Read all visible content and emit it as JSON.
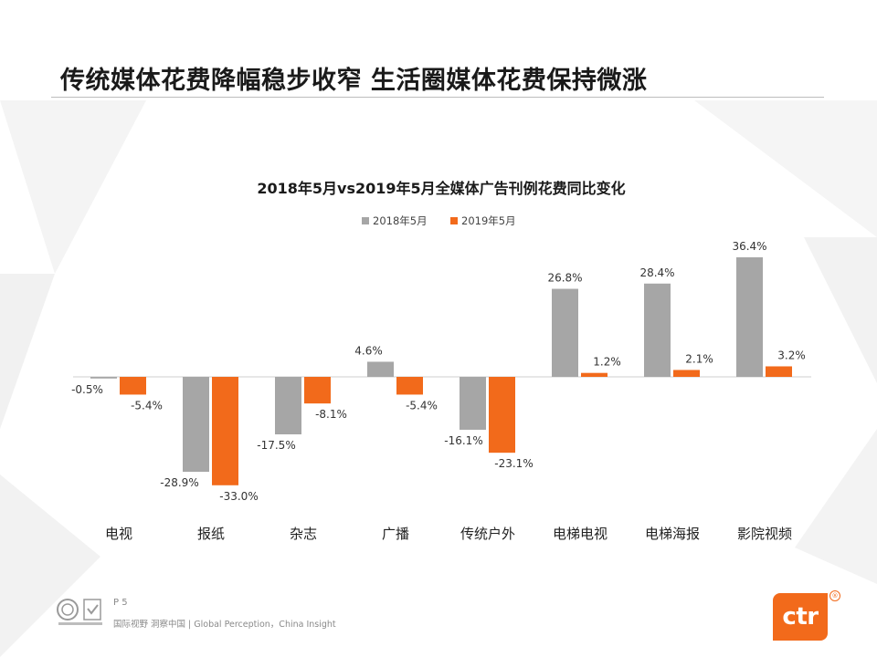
{
  "slide": {
    "title": "传统媒体花费降幅稳步收窄 生活圈媒体花费保持微涨",
    "page_number": "P 5",
    "footer_text": "国际视野 洞察中国 | Global Perception，China Insight",
    "brand": "ctr",
    "brand_mark": "®"
  },
  "colors": {
    "series_2018": "#a6a6a6",
    "series_2019": "#f26a1b",
    "brand": "#f26a1b"
  },
  "chart_data": {
    "type": "bar",
    "title": "2018年5月vs2019年5月全媒体广告刊例花费同比变化",
    "categories": [
      "电视",
      "报纸",
      "杂志",
      "广播",
      "传统户外",
      "电梯电视",
      "电梯海报",
      "影院视频"
    ],
    "series": [
      {
        "name": "2018年5月",
        "values": [
          -0.5,
          -28.9,
          -17.5,
          4.6,
          -16.1,
          26.8,
          28.4,
          36.4
        ],
        "labels": [
          "-0.5%",
          "-28.9%",
          "-17.5%",
          "4.6%",
          "-16.1%",
          "26.8%",
          "28.4%",
          "36.4%"
        ]
      },
      {
        "name": "2019年5月",
        "values": [
          -5.4,
          -33.0,
          -8.1,
          -5.4,
          -23.1,
          1.2,
          2.1,
          3.2
        ],
        "labels": [
          "-5.4%",
          "-33.0%",
          "-8.1%",
          "-5.4%",
          "-23.1%",
          "1.2%",
          "2.1%",
          "3.2%"
        ]
      }
    ],
    "unit": "%",
    "ylim": [
      -40,
      40
    ],
    "grid": false,
    "legend": "top-center",
    "xlabel": "",
    "ylabel": ""
  }
}
